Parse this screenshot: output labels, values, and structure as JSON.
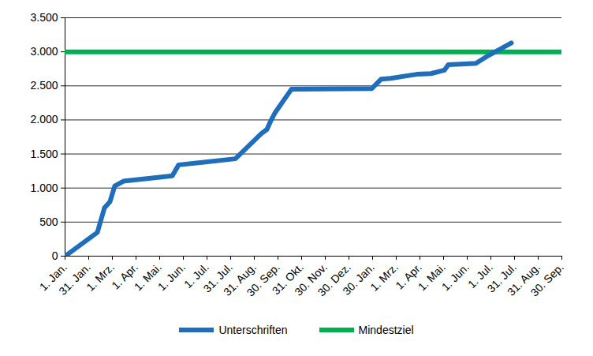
{
  "chart_data": {
    "type": "line",
    "x": [
      0,
      41,
      50,
      57,
      63,
      74,
      136,
      144,
      216,
      249,
      256,
      261,
      266,
      287,
      389,
      401,
      413,
      446,
      464,
      481,
      486,
      521,
      536,
      566,
      630
    ],
    "series": [
      {
        "name": "Unterschriften",
        "color": "#1f6ebc",
        "values": [
          0,
          350,
          710,
          800,
          1030,
          1100,
          1180,
          1340,
          1430,
          1800,
          1860,
          1990,
          2100,
          2450,
          2460,
          2600,
          2610,
          2670,
          2680,
          2730,
          2810,
          2830,
          2940,
          3130,
          null
        ]
      },
      {
        "name": "Mindestziel",
        "color": "#00b050",
        "values": [
          3000,
          3000,
          3000,
          3000,
          3000,
          3000,
          3000,
          3000,
          3000,
          3000,
          3000,
          3000,
          3000,
          3000,
          3000,
          3000,
          3000,
          3000,
          3000,
          3000,
          3000,
          3000,
          3000,
          3000,
          3000
        ]
      }
    ],
    "xlim": [
      0,
      630
    ],
    "xticks": [
      {
        "value": 0,
        "label": "1. Jan."
      },
      {
        "value": 30,
        "label": "31. Jan."
      },
      {
        "value": 60,
        "label": "1. Mrz."
      },
      {
        "value": 90,
        "label": "1. Apr."
      },
      {
        "value": 120,
        "label": "1. Mai."
      },
      {
        "value": 150,
        "label": "1. Jun."
      },
      {
        "value": 180,
        "label": "1. Jul."
      },
      {
        "value": 210,
        "label": "31. Jul."
      },
      {
        "value": 240,
        "label": "31. Aug."
      },
      {
        "value": 270,
        "label": "30. Sep."
      },
      {
        "value": 300,
        "label": "31. Okt."
      },
      {
        "value": 330,
        "label": "30. Nov."
      },
      {
        "value": 360,
        "label": "30. Dez."
      },
      {
        "value": 390,
        "label": "30. Jan."
      },
      {
        "value": 420,
        "label": "1. Mrz."
      },
      {
        "value": 450,
        "label": "1. Apr."
      },
      {
        "value": 480,
        "label": "1. Mai."
      },
      {
        "value": 510,
        "label": "1. Jun."
      },
      {
        "value": 540,
        "label": "1. Jul."
      },
      {
        "value": 570,
        "label": "31. Jul."
      },
      {
        "value": 600,
        "label": "31. Aug."
      },
      {
        "value": 630,
        "label": "30. Sep."
      }
    ],
    "ylim": [
      0,
      3500
    ],
    "yticks": [
      0,
      {
        "value": 500,
        "label": "500"
      },
      {
        "value": 1000,
        "label": "1.000"
      },
      {
        "value": 1500,
        "label": "1.500"
      },
      {
        "value": 2000,
        "label": "2.000"
      },
      {
        "value": 2500,
        "label": "2.500"
      },
      {
        "value": 3000,
        "label": "3.000"
      },
      {
        "value": 3500,
        "label": "3.500"
      }
    ],
    "grid": true,
    "legend": "bottom"
  }
}
